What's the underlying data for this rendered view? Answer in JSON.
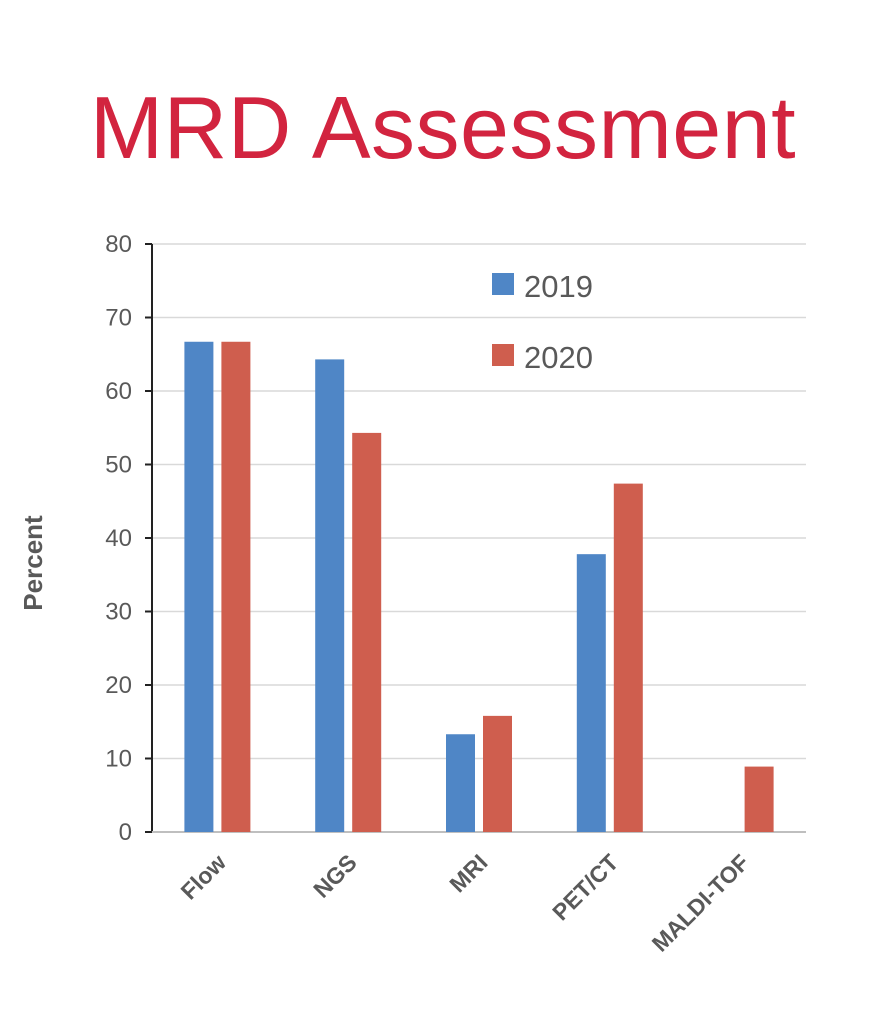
{
  "chart_data": {
    "type": "bar",
    "title": "MRD Assessment",
    "xlabel": "",
    "ylabel": "Percent",
    "ylim": [
      0,
      80
    ],
    "yticks": [
      0,
      10,
      20,
      30,
      40,
      50,
      60,
      70,
      80
    ],
    "grid": true,
    "legend_position": "top-right",
    "categories": [
      "Flow",
      "NGS",
      "MRI",
      "PET/CT",
      "MALDI-TOF"
    ],
    "series": [
      {
        "name": "2019",
        "color": "#4f86c6",
        "values": [
          66.7,
          64.3,
          13.3,
          37.8,
          0
        ]
      },
      {
        "name": "2020",
        "color": "#cf5e4e",
        "values": [
          66.7,
          54.3,
          15.8,
          47.4,
          8.9
        ]
      }
    ]
  }
}
